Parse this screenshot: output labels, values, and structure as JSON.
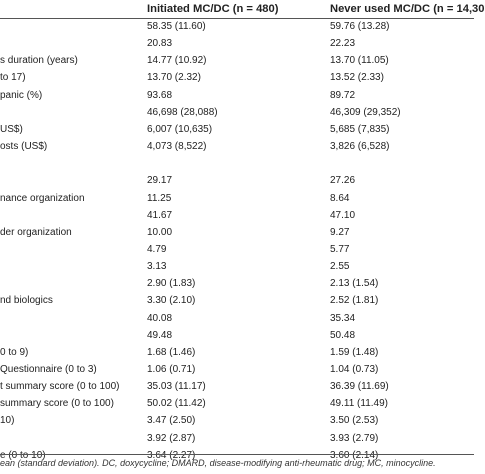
{
  "header": {
    "col1": "Initiated MC/DC (n = 480)",
    "col2": "Never used MC/DC (n = 14,30"
  },
  "rows": [
    {
      "label": "",
      "c1": "58.35 (11.60)",
      "c2": "59.76 (13.28)"
    },
    {
      "label": "",
      "c1": "20.83",
      "c2": "22.23"
    },
    {
      "label": "s duration (years)",
      "c1": "14.77 (10.92)",
      "c2": "13.70 (11.05)"
    },
    {
      "label": " to 17)",
      "c1": "13.70 (2.32)",
      "c2": "13.52 (2.33)"
    },
    {
      "label": "panic (%)",
      "c1": "93.68",
      "c2": "89.72"
    },
    {
      "label": "",
      "c1": "46,698 (28,088)",
      "c2": "46,309 (29,352)"
    },
    {
      "label": "US$)",
      "c1": "6,007 (10,635)",
      "c2": "5,685 (7,835)"
    },
    {
      "label": "osts (US$)",
      "c1": "4,073 (8,522)",
      "c2": "3,826 (6,528)"
    },
    {
      "label": "",
      "c1": "",
      "c2": ""
    },
    {
      "label": "",
      "c1": "29.17",
      "c2": "27.26"
    },
    {
      "label": "nance organization",
      "c1": "11.25",
      "c2": "8.64"
    },
    {
      "label": "",
      "c1": "41.67",
      "c2": "47.10"
    },
    {
      "label": "der organization",
      "c1": "10.00",
      "c2": "9.27"
    },
    {
      "label": "",
      "c1": "4.79",
      "c2": "5.77"
    },
    {
      "label": "",
      "c1": "3.13",
      "c2": "2.55"
    },
    {
      "label": "",
      "c1": "2.90 (1.83)",
      "c2": "2.13 (1.54)"
    },
    {
      "label": "nd biologics",
      "c1": "3.30 (2.10)",
      "c2": "2.52 (1.81)"
    },
    {
      "label": "",
      "c1": "40.08",
      "c2": "35.34"
    },
    {
      "label": "",
      "c1": "49.48",
      "c2": "50.48"
    },
    {
      "label": "0 to 9)",
      "c1": "1.68 (1.46)",
      "c2": "1.59 (1.48)"
    },
    {
      "label": "Questionnaire (0 to 3)",
      "c1": "1.06 (0.71)",
      "c2": "1.04 (0.73)"
    },
    {
      "label": "t summary score (0 to 100)",
      "c1": "35.03 (11.17)",
      "c2": "36.39 (11.69)"
    },
    {
      "label": "summary score (0 to 100)",
      "c1": "50.02 (11.42)",
      "c2": "49.11 (11.49)"
    },
    {
      "label": "10)",
      "c1": "3.47 (2.50)",
      "c2": "3.50 (2.53)"
    },
    {
      "label": "",
      "c1": "3.92 (2.87)",
      "c2": "3.93 (2.79)"
    },
    {
      "label": "e (0 to 10)",
      "c1": "3.64 (2.27)",
      "c2": "3.60 (2.14)"
    }
  ],
  "footnote": "ean (standard deviation). DC, doxycycline; DMARD, disease-modifying anti-rheumatic drug; MC, minocycline."
}
